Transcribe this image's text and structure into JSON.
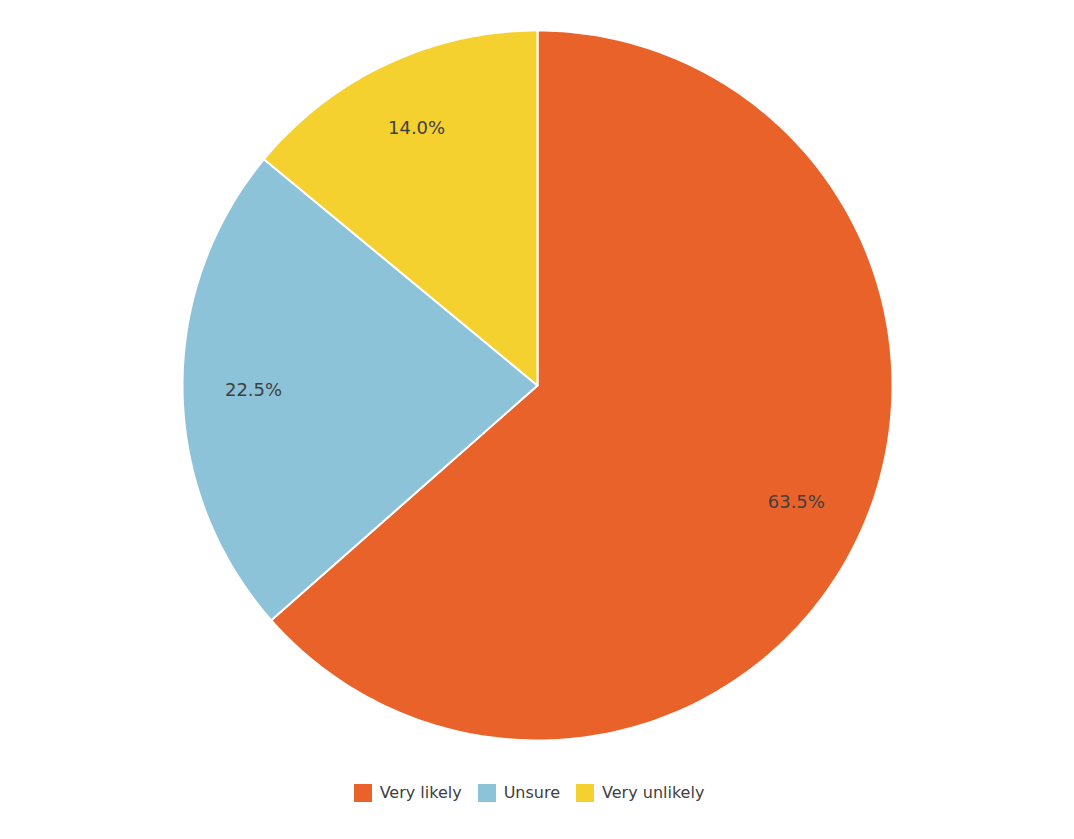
{
  "chart_data": {
    "type": "pie",
    "categories": [
      "Very likely",
      "Unsure",
      "Very unlikely"
    ],
    "values": [
      63.5,
      22.5,
      14.0
    ],
    "value_labels": [
      "63.5%",
      "22.5%",
      "14.0%"
    ],
    "colors": [
      "#E8622A",
      "#8DC3D8",
      "#F5D130"
    ],
    "data_labels": true,
    "legend": "bottom"
  }
}
